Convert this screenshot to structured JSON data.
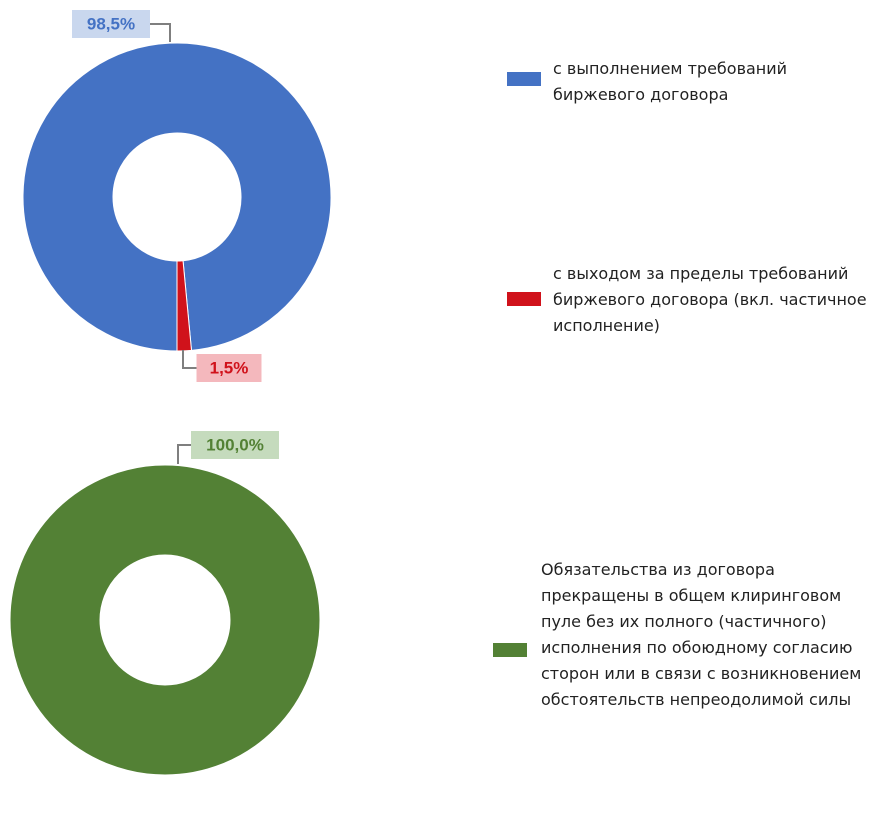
{
  "chart_data": [
    {
      "type": "pie",
      "donut": true,
      "start_angle": 180,
      "categories": [
        "с выполнением требований биржевого договора",
        "с выходом за пределы требований биржевого договора (вкл. частичное исполнение)"
      ],
      "values": [
        98.5,
        1.5
      ],
      "value_labels": [
        "98,5%",
        "1,5%"
      ],
      "colors": [
        "#4472c4",
        "#d0121b"
      ],
      "legend": "right"
    },
    {
      "type": "pie",
      "donut": true,
      "start_angle": 180,
      "categories": [
        "Обязательства из договора прекращены в общем клиринговом пуле без их полного (частичного) исполнения по обоюдному согласию сторон или в связи с возникновением обстоятельств непреодолимой силы"
      ],
      "values": [
        100
      ],
      "value_labels": [
        "100,0%"
      ],
      "colors": [
        "#538135"
      ],
      "legend": "right"
    }
  ]
}
